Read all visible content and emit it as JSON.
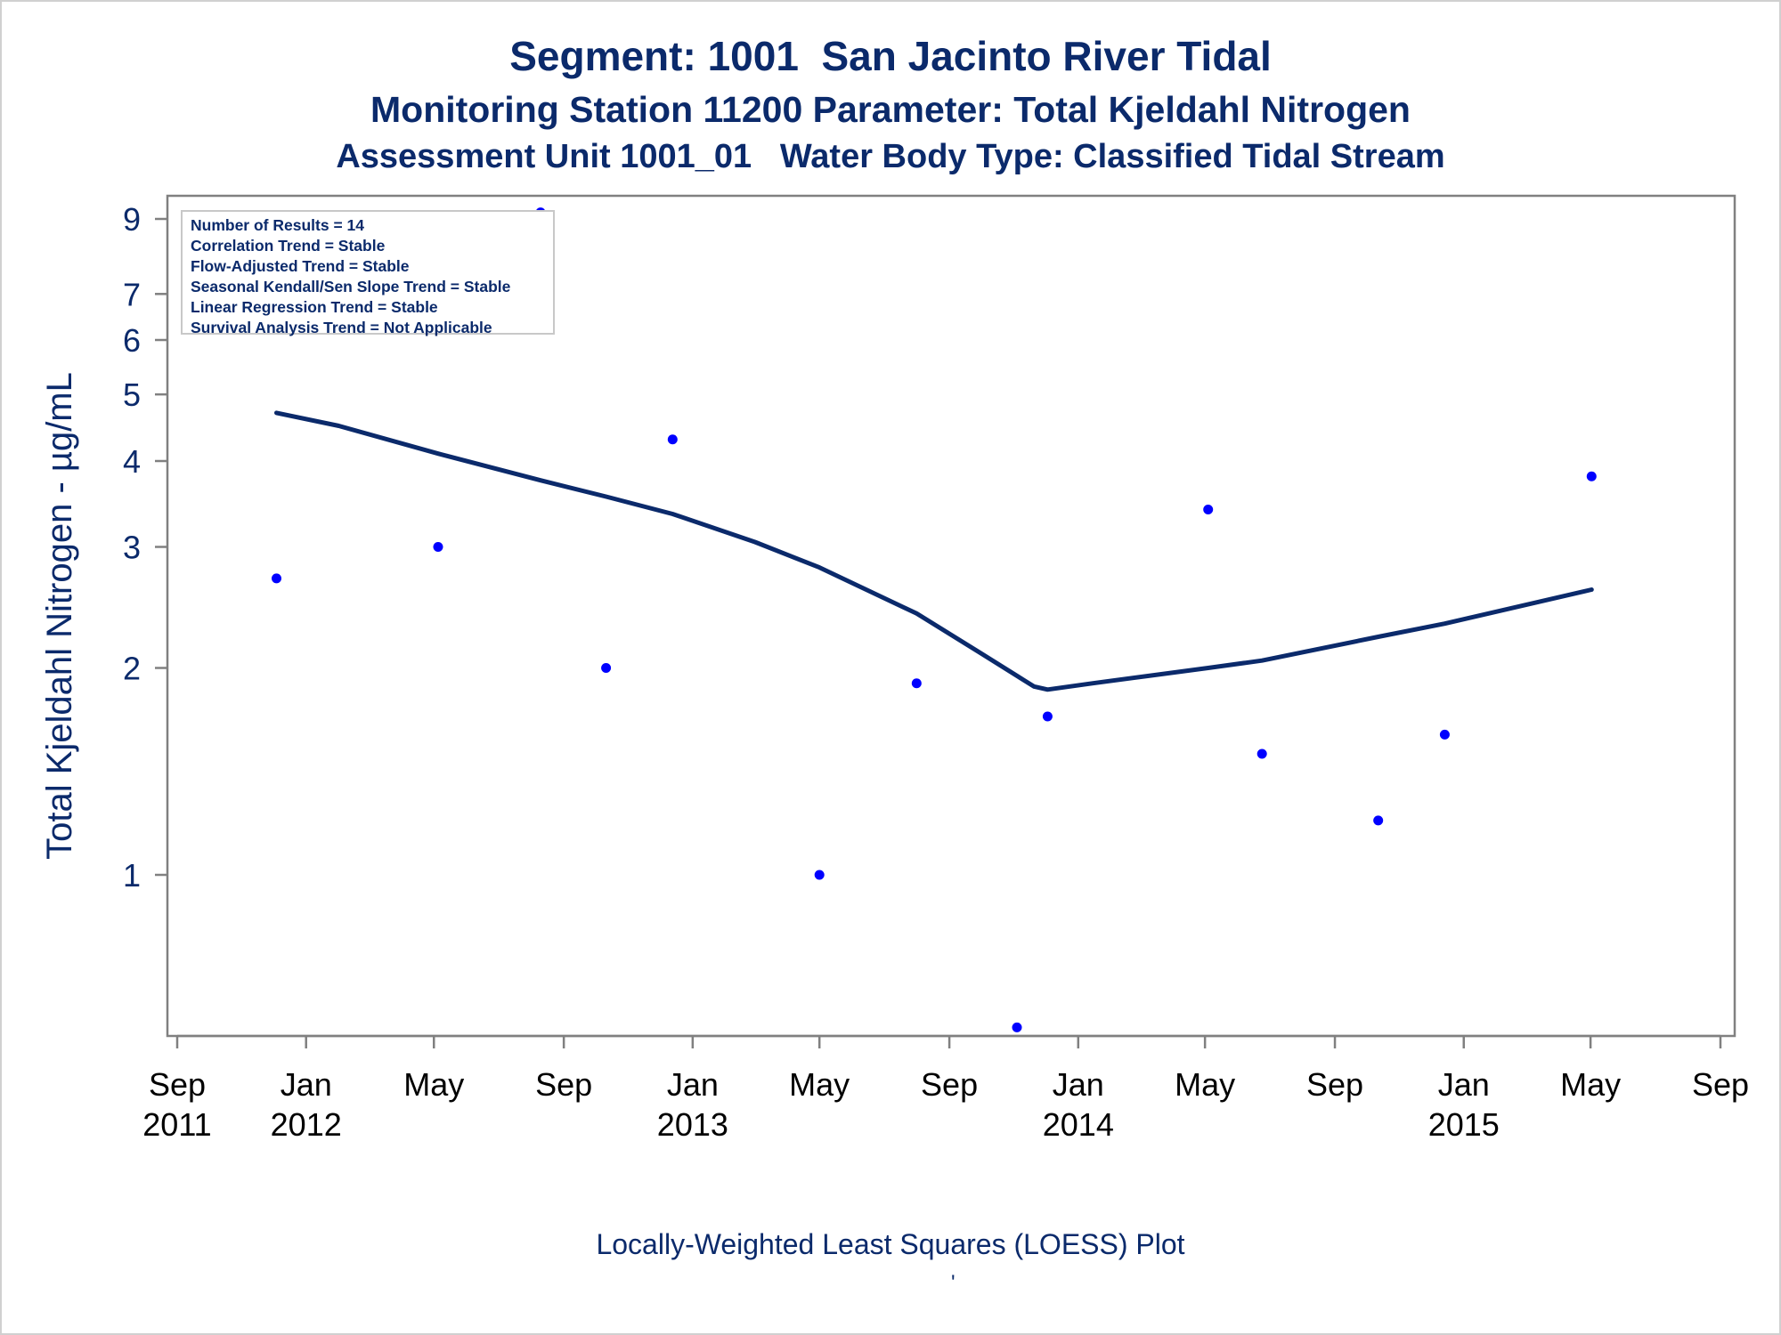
{
  "title_line1": "Segment: 1001  San Jacinto River Tidal",
  "title_line2": "Monitoring Station 11200 Parameter: Total Kjeldahl Nitrogen",
  "title_line3": "Assessment Unit 1001_01   Water Body Type: Classified Tidal Stream",
  "stats": [
    "Number of Results = 14",
    "Correlation Trend = Stable",
    "Flow-Adjusted Trend = Stable",
    "Seasonal Kendall/Sen Slope Trend = Stable",
    "Linear Regression Trend = Stable",
    "Survival Analysis Trend = Not Applicable"
  ],
  "footnote": "Locally-Weighted Least Squares (LOESS) Plot",
  "footnote_mark": "'",
  "colors": {
    "text": "#0b2a6b",
    "points": "#0000ff",
    "loess_line": "#0b2a6b",
    "axis_frame": "#808080"
  },
  "chart_data": {
    "type": "scatter",
    "ylabel": "Total Kjeldahl Nitrogen -  µg/mL",
    "xlabel": "",
    "yscale": "log",
    "ylim": [
      0.6,
      9.5
    ],
    "yticks": [
      1,
      2,
      3,
      4,
      5,
      6,
      7,
      9
    ],
    "xlim": [
      "2011-09-01",
      "2015-09-01"
    ],
    "xticks": [
      {
        "date": "2011-09-01",
        "month": "Sep",
        "year": "2011"
      },
      {
        "date": "2012-01-01",
        "month": "Jan",
        "year": "2012"
      },
      {
        "date": "2012-05-01",
        "month": "May",
        "year": ""
      },
      {
        "date": "2012-09-01",
        "month": "Sep",
        "year": ""
      },
      {
        "date": "2013-01-01",
        "month": "Jan",
        "year": "2013"
      },
      {
        "date": "2013-05-01",
        "month": "May",
        "year": ""
      },
      {
        "date": "2013-09-01",
        "month": "Sep",
        "year": ""
      },
      {
        "date": "2014-01-01",
        "month": "Jan",
        "year": "2014"
      },
      {
        "date": "2014-05-01",
        "month": "May",
        "year": ""
      },
      {
        "date": "2014-09-01",
        "month": "Sep",
        "year": ""
      },
      {
        "date": "2015-01-01",
        "month": "Jan",
        "year": "2015"
      },
      {
        "date": "2015-05-01",
        "month": "May",
        "year": ""
      },
      {
        "date": "2015-09-01",
        "month": "Sep",
        "year": ""
      }
    ],
    "points": [
      {
        "x": "2011-12-04",
        "y": 2.7
      },
      {
        "x": "2012-05-05",
        "y": 3.0
      },
      {
        "x": "2012-08-10",
        "y": 9.2
      },
      {
        "x": "2012-10-11",
        "y": 2.0
      },
      {
        "x": "2012-12-13",
        "y": 4.3
      },
      {
        "x": "2013-05-01",
        "y": 1.0
      },
      {
        "x": "2013-08-01",
        "y": 1.9
      },
      {
        "x": "2013-11-04",
        "y": 0.6
      },
      {
        "x": "2013-12-03",
        "y": 1.7
      },
      {
        "x": "2014-05-04",
        "y": 3.4
      },
      {
        "x": "2014-06-24",
        "y": 1.5
      },
      {
        "x": "2014-10-12",
        "y": 1.2
      },
      {
        "x": "2014-12-14",
        "y": 1.6
      },
      {
        "x": "2015-05-02",
        "y": 3.8
      }
    ],
    "series": [
      {
        "style": "line",
        "x": [
          "2011-12-04",
          "2012-02-01",
          "2012-05-05",
          "2012-08-10",
          "2012-10-11",
          "2012-12-13",
          "2013-03-01",
          "2013-05-01",
          "2013-08-01",
          "2013-10-01",
          "2013-11-20",
          "2013-12-03",
          "2014-01-15",
          "2014-05-04",
          "2014-06-24",
          "2014-10-12",
          "2014-12-14",
          "2015-05-02"
        ],
        "y": [
          4.7,
          4.5,
          4.1,
          3.75,
          3.55,
          3.35,
          3.05,
          2.8,
          2.4,
          2.1,
          1.88,
          1.86,
          1.9,
          2.0,
          2.05,
          2.22,
          2.32,
          2.6
        ]
      }
    ]
  }
}
